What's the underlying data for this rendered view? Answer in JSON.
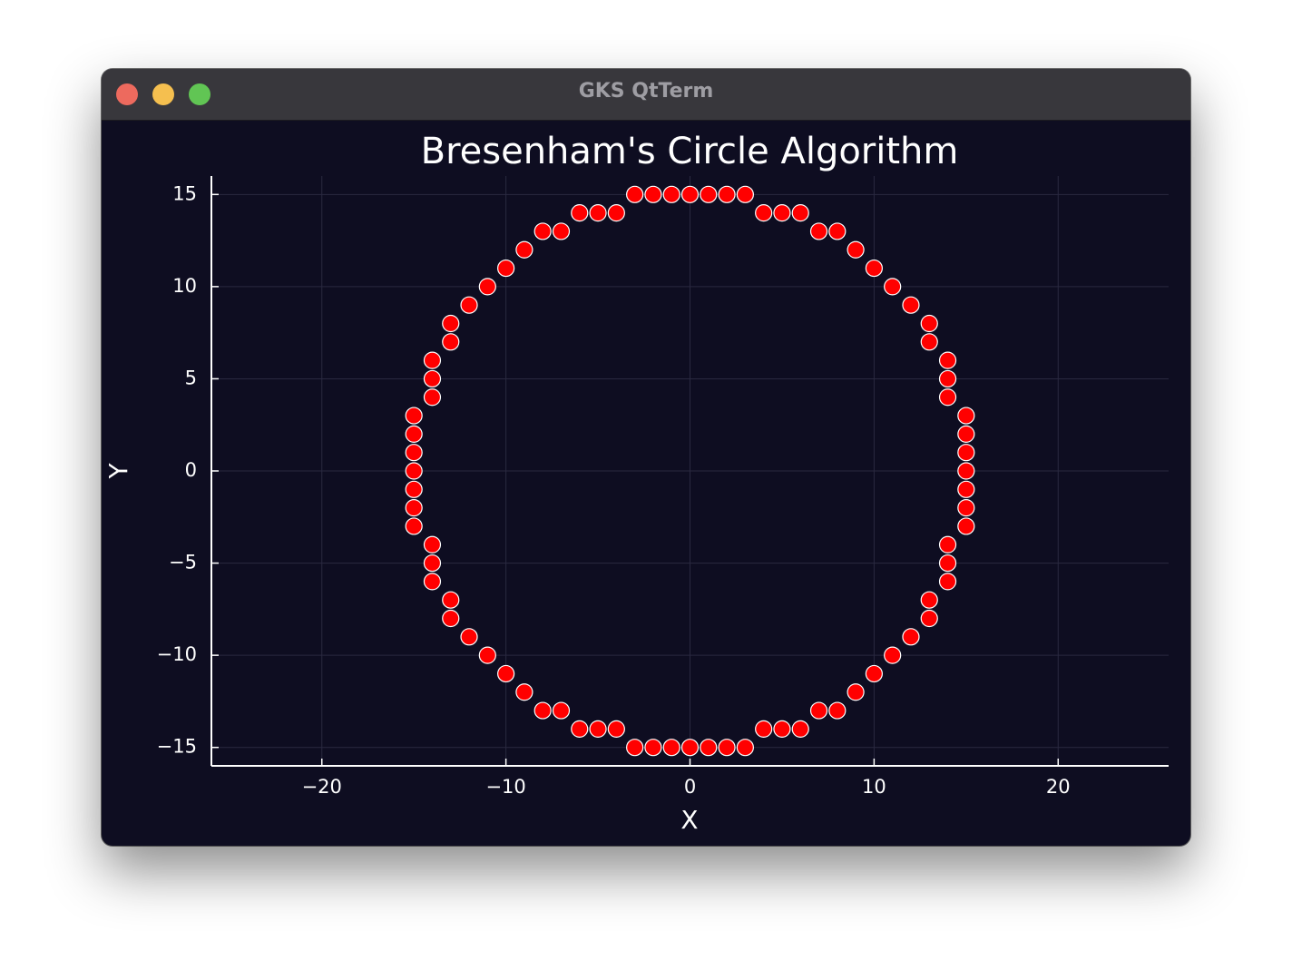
{
  "window": {
    "title": "GKS QtTerm"
  },
  "colors": {
    "background": "#0e0d21",
    "marker_fill": "#ff0000",
    "marker_stroke": "#ffffff",
    "grid": "#2a2940",
    "axis": "#ffffff"
  },
  "chart_data": {
    "type": "scatter",
    "title": "Bresenham's Circle Algorithm",
    "xlabel": "X",
    "ylabel": "Y",
    "xlim": [
      -26,
      26
    ],
    "ylim": [
      -16,
      16
    ],
    "xticks": [
      -20,
      -10,
      0,
      10,
      20
    ],
    "yticks": [
      -15,
      -10,
      -5,
      0,
      5,
      10,
      15
    ],
    "xtick_labels": [
      "−20",
      "−10",
      "0",
      "10",
      "20"
    ],
    "ytick_labels": [
      "−15",
      "−10",
      "−5",
      "0",
      "5",
      "10",
      "15"
    ],
    "grid": true,
    "legend": false,
    "points": [
      [
        -3,
        15
      ],
      [
        -2,
        15
      ],
      [
        -1,
        15
      ],
      [
        0,
        15
      ],
      [
        1,
        15
      ],
      [
        2,
        15
      ],
      [
        3,
        15
      ],
      [
        -6,
        14
      ],
      [
        -5,
        14
      ],
      [
        -4,
        14
      ],
      [
        4,
        14
      ],
      [
        5,
        14
      ],
      [
        6,
        14
      ],
      [
        -8,
        13
      ],
      [
        -7,
        13
      ],
      [
        7,
        13
      ],
      [
        8,
        13
      ],
      [
        -9,
        12
      ],
      [
        9,
        12
      ],
      [
        -10,
        11
      ],
      [
        10,
        11
      ],
      [
        -11,
        10
      ],
      [
        11,
        10
      ],
      [
        -12,
        9
      ],
      [
        12,
        9
      ],
      [
        -13,
        8
      ],
      [
        13,
        8
      ],
      [
        -13,
        7
      ],
      [
        13,
        7
      ],
      [
        -14,
        6
      ],
      [
        14,
        6
      ],
      [
        -14,
        5
      ],
      [
        14,
        5
      ],
      [
        -14,
        4
      ],
      [
        14,
        4
      ],
      [
        -15,
        3
      ],
      [
        15,
        3
      ],
      [
        -15,
        2
      ],
      [
        15,
        2
      ],
      [
        -15,
        1
      ],
      [
        15,
        1
      ],
      [
        -15,
        0
      ],
      [
        15,
        0
      ],
      [
        -15,
        -1
      ],
      [
        15,
        -1
      ],
      [
        -15,
        -2
      ],
      [
        15,
        -2
      ],
      [
        -15,
        -3
      ],
      [
        15,
        -3
      ],
      [
        -14,
        -4
      ],
      [
        14,
        -4
      ],
      [
        -14,
        -5
      ],
      [
        14,
        -5
      ],
      [
        -14,
        -6
      ],
      [
        14,
        -6
      ],
      [
        -13,
        -7
      ],
      [
        13,
        -7
      ],
      [
        -13,
        -8
      ],
      [
        13,
        -8
      ],
      [
        -12,
        -9
      ],
      [
        12,
        -9
      ],
      [
        -11,
        -10
      ],
      [
        11,
        -10
      ],
      [
        -10,
        -11
      ],
      [
        10,
        -11
      ],
      [
        -9,
        -12
      ],
      [
        9,
        -12
      ],
      [
        -8,
        -13
      ],
      [
        -7,
        -13
      ],
      [
        7,
        -13
      ],
      [
        8,
        -13
      ],
      [
        -6,
        -14
      ],
      [
        -5,
        -14
      ],
      [
        -4,
        -14
      ],
      [
        4,
        -14
      ],
      [
        5,
        -14
      ],
      [
        6,
        -14
      ],
      [
        -3,
        -15
      ],
      [
        -2,
        -15
      ],
      [
        -1,
        -15
      ],
      [
        0,
        -15
      ],
      [
        1,
        -15
      ],
      [
        2,
        -15
      ],
      [
        3,
        -15
      ]
    ]
  }
}
